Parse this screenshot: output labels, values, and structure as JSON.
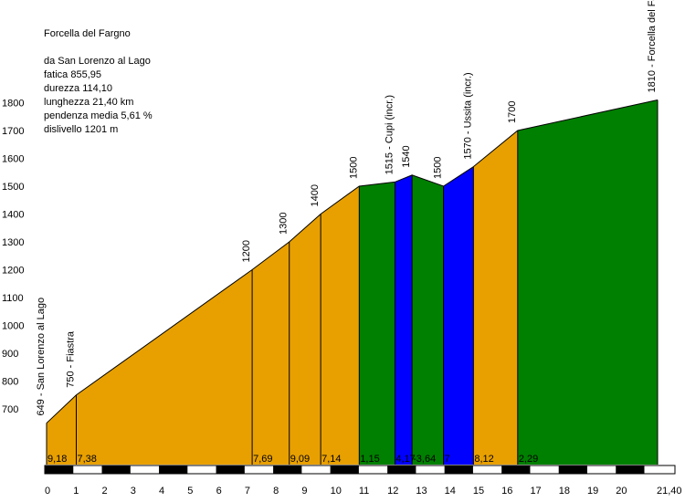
{
  "info": {
    "title": "Forcella del Fargno",
    "lines": [
      "da San Lorenzo al Lago",
      "fatica 855,95",
      "durezza 114,10",
      "lunghezza 21,40 km",
      "pendenza media 5,61 %",
      "dislivello 1201 m"
    ]
  },
  "colors": {
    "orange": "#e8a000",
    "green": "#008000",
    "blue": "#0000ff",
    "axis": "#000000"
  },
  "chart_data": {
    "type": "area",
    "title": "Forcella del Fargno",
    "xlabel": "",
    "ylabel": "",
    "xlim": [
      0,
      21.4
    ],
    "ylim": [
      600,
      1850
    ],
    "y_ticks": [
      700,
      800,
      900,
      1000,
      1100,
      1200,
      1300,
      1400,
      1500,
      1600,
      1700,
      1800
    ],
    "y_tick_labels": [
      "700",
      "800",
      "900",
      "1000",
      "1100",
      "1200",
      "1300",
      "1400",
      "1500",
      "1600",
      "1700",
      "1800"
    ],
    "x_ticks": [
      0,
      1,
      2,
      3,
      4,
      5,
      6,
      7,
      8,
      9,
      10,
      11,
      12,
      13,
      14,
      15,
      16,
      17,
      18,
      19,
      20,
      21.4
    ],
    "x_tick_labels": [
      "0",
      "1",
      "2",
      "3",
      "4",
      "5",
      "6",
      "7",
      "8",
      "9",
      "10",
      "11",
      "12",
      "13",
      "14",
      "15",
      "16",
      "17",
      "18",
      "19",
      "20",
      "21,40"
    ],
    "points": [
      {
        "x": 0,
        "y": 649,
        "label": "649 - San Lorenzo al Lago"
      },
      {
        "x": 1.04,
        "y": 750,
        "label": "750 - Fiastra"
      },
      {
        "x": 7.2,
        "y": 1200,
        "label": "1200"
      },
      {
        "x": 8.5,
        "y": 1300,
        "label": "1300"
      },
      {
        "x": 9.6,
        "y": 1400,
        "label": "1400"
      },
      {
        "x": 10.95,
        "y": 1500,
        "label": "1500"
      },
      {
        "x": 12.2,
        "y": 1515,
        "label": "1515 - Cupi (incr.)"
      },
      {
        "x": 12.8,
        "y": 1540,
        "label": "1540"
      },
      {
        "x": 13.9,
        "y": 1500,
        "label": "1500"
      },
      {
        "x": 14.95,
        "y": 1570,
        "label": "1570 - Ussita (incr.)"
      },
      {
        "x": 16.5,
        "y": 1700,
        "label": "1700"
      },
      {
        "x": 21.4,
        "y": 1810,
        "label": "1810 - Forcella del Fargno"
      }
    ],
    "segments": [
      {
        "color": "orange",
        "gradient": "9,18"
      },
      {
        "color": "orange",
        "gradient": "7,38"
      },
      {
        "color": "orange",
        "gradient": "7,69"
      },
      {
        "color": "orange",
        "gradient": "9,09"
      },
      {
        "color": "orange",
        "gradient": "7,14"
      },
      {
        "color": "green",
        "gradient": "1,15"
      },
      {
        "color": "blue",
        "gradient": "4,17"
      },
      {
        "color": "green",
        "gradient": "-3,64"
      },
      {
        "color": "blue",
        "gradient": "7"
      },
      {
        "color": "orange",
        "gradient": "8,12"
      },
      {
        "color": "green",
        "gradient": "2,29"
      }
    ]
  }
}
